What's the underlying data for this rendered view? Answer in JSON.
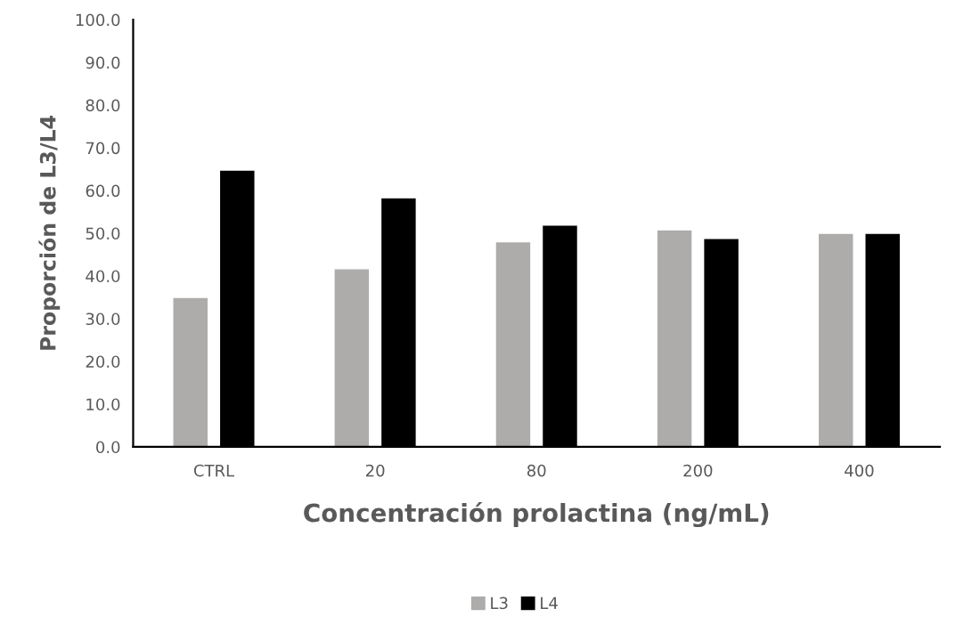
{
  "chart_data": {
    "type": "bar",
    "xlabel": "Concentración prolactina (ng/mL)",
    "ylabel": "Proporción de L3/L4",
    "categories": [
      "CTRL",
      "20",
      "80",
      "200",
      "400"
    ],
    "series": [
      {
        "name": "L3",
        "color": "#aeabab",
        "values": [
          35.0,
          41.7,
          48.0,
          50.8,
          50.0
        ]
      },
      {
        "name": "L4",
        "color": "#000000",
        "values": [
          64.8,
          58.3,
          51.9,
          48.8,
          50.0
        ]
      }
    ],
    "ylim": [
      0,
      100
    ],
    "yticks": [
      {
        "value": 0,
        "label": "0.0"
      },
      {
        "value": 10,
        "label": "10.0"
      },
      {
        "value": 20,
        "label": "20.0"
      },
      {
        "value": 30,
        "label": "30.0"
      },
      {
        "value": 40,
        "label": "40.0"
      },
      {
        "value": 50,
        "label": "50.0"
      },
      {
        "value": 60,
        "label": "60.0"
      },
      {
        "value": 70,
        "label": "70.0"
      },
      {
        "value": 80,
        "label": "80.0"
      },
      {
        "value": 90,
        "label": "90.0"
      },
      {
        "value": 100,
        "label": "100.0"
      }
    ],
    "grid": false,
    "legend": "bottom"
  }
}
